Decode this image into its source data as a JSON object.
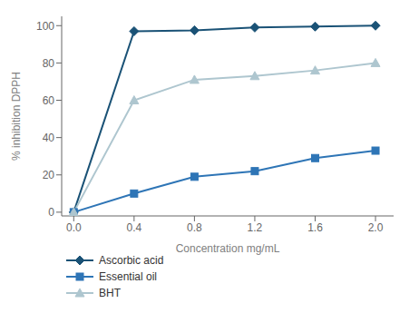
{
  "chart_data": {
    "type": "line",
    "x": [
      0,
      0.4,
      0.8,
      1.2,
      1.6,
      2.0
    ],
    "series": [
      {
        "name": "Ascorbic acid",
        "color": "#1a5276",
        "marker": "diamond",
        "values": [
          0,
          97,
          97.5,
          99,
          99.5,
          100
        ]
      },
      {
        "name": "Essential oil",
        "color": "#2e75b6",
        "marker": "square",
        "values": [
          0,
          10,
          19,
          22,
          29,
          33
        ]
      },
      {
        "name": "BHT",
        "color": "#aec6cf",
        "marker": "triangle",
        "values": [
          0,
          60,
          71,
          73,
          76,
          80
        ]
      }
    ],
    "xlabel": "Concentration mg/mL",
    "ylabel": "% inhibition DPPH",
    "xlim": [
      -0.08,
      2.12
    ],
    "ylim": [
      -2,
      105
    ],
    "xticks": [
      {
        "value": 0,
        "label": "0.0"
      },
      {
        "value": 0.4,
        "label": "0.4"
      },
      {
        "value": 0.8,
        "label": "0.8"
      },
      {
        "value": 1.2,
        "label": "1.2"
      },
      {
        "value": 1.6,
        "label": "1.6"
      },
      {
        "value": 2,
        "label": "2.0"
      }
    ],
    "yticks": [
      0,
      20,
      40,
      60,
      80,
      100
    ],
    "grid": false,
    "legend": "lower left"
  }
}
